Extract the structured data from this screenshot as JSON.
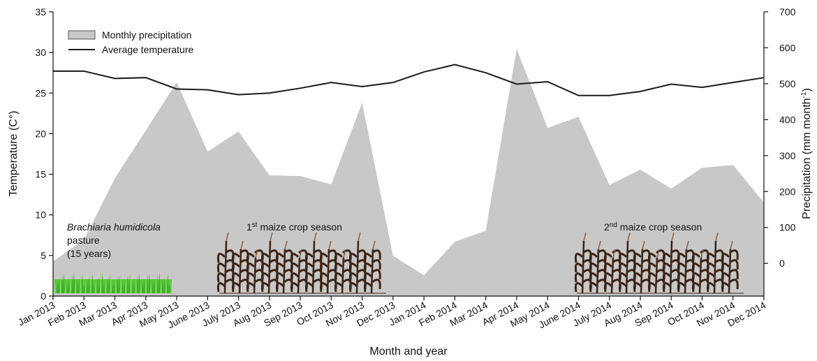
{
  "chart_data": {
    "type": "area-line",
    "x_label": "Month and year",
    "y_label": "Temperature (C°)",
    "y2_label": [
      "Precipitation (mm month",
      "-1",
      ")"
    ],
    "categories": [
      "Jan 2013",
      "Feb 2013",
      "Mar 2013",
      "Apr 2013",
      "May 2013",
      "June 2013",
      "July 2013",
      "Aug 2013",
      "Sep 2013",
      "Oct 2013",
      "Nov 2013",
      "Dec 2013",
      "Jan 2014",
      "Feb 2014",
      "Mar 2014",
      "Apr 2014",
      "May 2014",
      "June 2014",
      "July 2014",
      "Aug 2014",
      "Sep 2014",
      "Oct 2014",
      "Nov 2014",
      "Dec 2014"
    ],
    "series": [
      {
        "name": "Monthly precipitation",
        "type": "area",
        "axis": "y2",
        "color": "#c8c8c8",
        "values": [
          6,
          66,
          237,
          370,
          504,
          311,
          367,
          245,
          243,
          220,
          447,
          21,
          -33,
          60,
          91,
          597,
          377,
          408,
          218,
          261,
          208,
          266,
          274,
          169
        ]
      },
      {
        "name": "Average temperature",
        "type": "line",
        "color": "#1a1a1a",
        "values": [
          27.7,
          27.7,
          26.8,
          26.9,
          25.5,
          25.4,
          24.8,
          25.0,
          25.6,
          26.3,
          25.8,
          26.3,
          27.6,
          28.5,
          27.5,
          26.1,
          26.4,
          24.7,
          24.7,
          25.2,
          26.1,
          25.7,
          26.3,
          26.9
        ]
      }
    ],
    "ylim": [
      0,
      35
    ],
    "yticks": [
      0,
      5,
      10,
      15,
      20,
      25,
      30,
      35
    ],
    "y2lim": [
      -91,
      700
    ],
    "y2ticks": [
      0,
      100,
      200,
      300,
      400,
      500,
      600,
      700
    ],
    "legend": "top-left",
    "annotations": {
      "pasture": [
        "Brachiaria humidicola",
        "pasture",
        "(15 years)"
      ],
      "season1": [
        "1",
        "st",
        " maize crop season"
      ],
      "season2": [
        "2",
        "nd",
        " maize crop season"
      ]
    }
  }
}
